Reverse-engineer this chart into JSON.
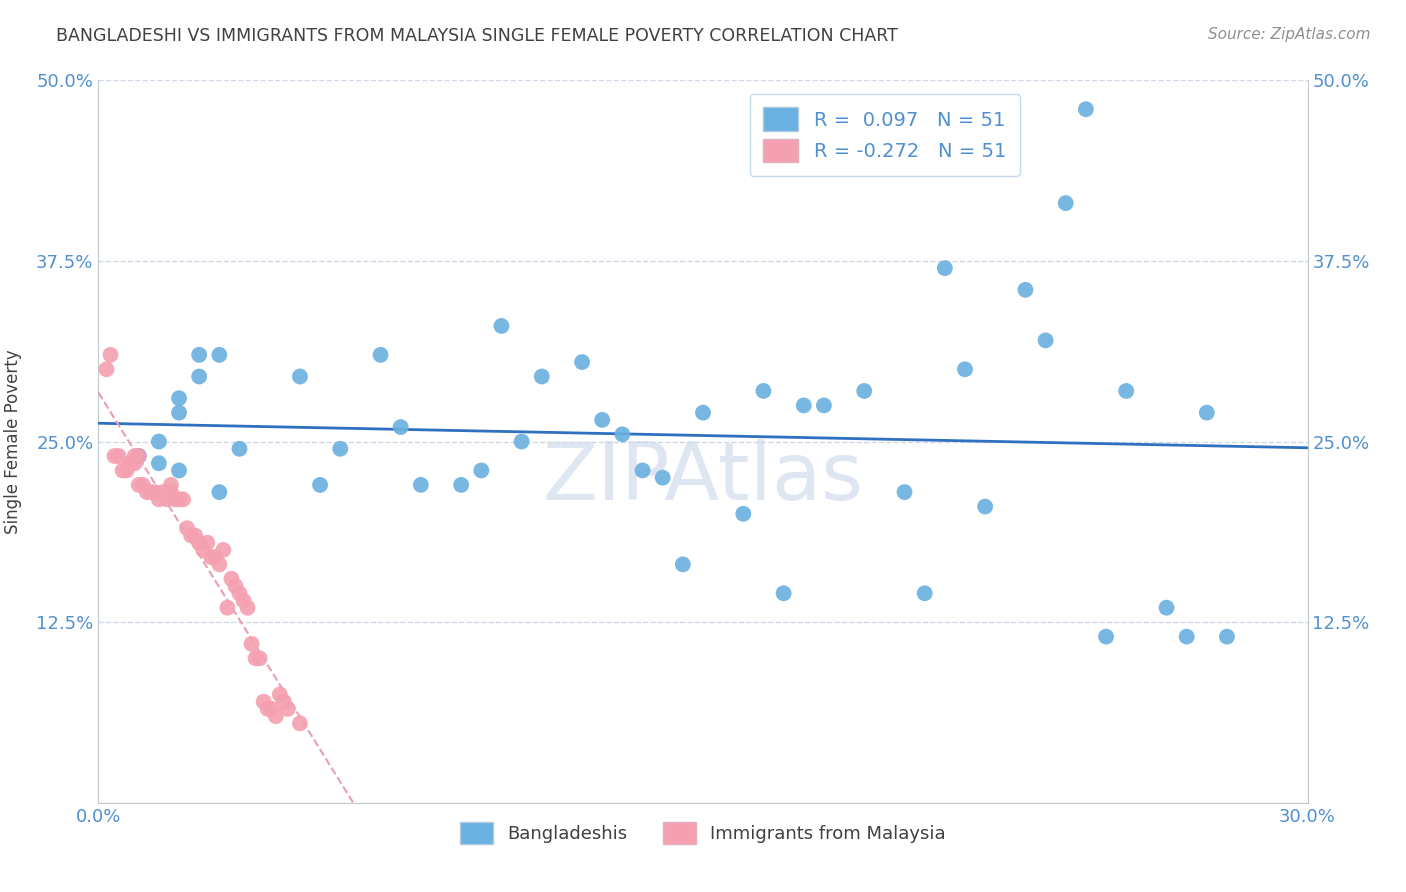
{
  "title": "BANGLADESHI VS IMMIGRANTS FROM MALAYSIA SINGLE FEMALE POVERTY CORRELATION CHART",
  "source": "Source: ZipAtlas.com",
  "ylabel": "Single Female Poverty",
  "xlim": [
    0.0,
    0.3
  ],
  "ylim": [
    0.0,
    0.5
  ],
  "xticks": [
    0.0,
    0.05,
    0.1,
    0.15,
    0.2,
    0.25,
    0.3
  ],
  "yticks": [
    0.0,
    0.125,
    0.25,
    0.375,
    0.5
  ],
  "ytick_labels": [
    "",
    "12.5%",
    "25.0%",
    "37.5%",
    "50.0%"
  ],
  "xtick_labels": [
    "0.0%",
    "",
    "",
    "",
    "",
    "",
    "30.0%"
  ],
  "legend1_label": "R =  0.097   N = 51",
  "legend2_label": "R = -0.272   N = 51",
  "legend_bottom1": "Bangladeshis",
  "legend_bottom2": "Immigrants from Malaysia",
  "blue_color": "#6ab0e0",
  "pink_color": "#f4a0b0",
  "trend_blue": "#3070c0",
  "trend_pink_dashed": "#e8a0b0",
  "axis_color": "#5090d0",
  "grid_color": "#d0d8e8",
  "title_color": "#404040",
  "source_color": "#909090",
  "watermark_color": "#c8d8e8",
  "bangladeshi_x": [
    0.02,
    0.02,
    0.025,
    0.03,
    0.01,
    0.01,
    0.015,
    0.015,
    0.02,
    0.025,
    0.03,
    0.035,
    0.05,
    0.055,
    0.06,
    0.07,
    0.075,
    0.08,
    0.09,
    0.095,
    0.1,
    0.105,
    0.11,
    0.12,
    0.125,
    0.13,
    0.135,
    0.14,
    0.145,
    0.15,
    0.16,
    0.165,
    0.17,
    0.175,
    0.18,
    0.19,
    0.2,
    0.205,
    0.21,
    0.215,
    0.22,
    0.23,
    0.235,
    0.24,
    0.245,
    0.25,
    0.255,
    0.265,
    0.27,
    0.275,
    0.28
  ],
  "bangladeshi_y": [
    0.27,
    0.23,
    0.31,
    0.31,
    0.24,
    0.24,
    0.25,
    0.235,
    0.28,
    0.295,
    0.215,
    0.245,
    0.295,
    0.22,
    0.245,
    0.31,
    0.26,
    0.22,
    0.22,
    0.23,
    0.33,
    0.25,
    0.295,
    0.305,
    0.265,
    0.255,
    0.23,
    0.225,
    0.165,
    0.27,
    0.2,
    0.285,
    0.145,
    0.275,
    0.275,
    0.285,
    0.215,
    0.145,
    0.37,
    0.3,
    0.205,
    0.355,
    0.32,
    0.415,
    0.48,
    0.115,
    0.285,
    0.135,
    0.115,
    0.27,
    0.115
  ],
  "malaysia_x": [
    0.002,
    0.003,
    0.004,
    0.005,
    0.006,
    0.007,
    0.008,
    0.008,
    0.009,
    0.009,
    0.01,
    0.01,
    0.011,
    0.012,
    0.013,
    0.014,
    0.015,
    0.016,
    0.017,
    0.018,
    0.018,
    0.019,
    0.02,
    0.021,
    0.022,
    0.023,
    0.024,
    0.025,
    0.026,
    0.027,
    0.028,
    0.029,
    0.03,
    0.031,
    0.032,
    0.033,
    0.034,
    0.035,
    0.036,
    0.037,
    0.038,
    0.039,
    0.04,
    0.041,
    0.042,
    0.043,
    0.044,
    0.045,
    0.046,
    0.047,
    0.05
  ],
  "malaysia_y": [
    0.3,
    0.31,
    0.24,
    0.24,
    0.23,
    0.23,
    0.235,
    0.235,
    0.235,
    0.24,
    0.24,
    0.22,
    0.22,
    0.215,
    0.215,
    0.215,
    0.21,
    0.215,
    0.21,
    0.215,
    0.22,
    0.21,
    0.21,
    0.21,
    0.19,
    0.185,
    0.185,
    0.18,
    0.175,
    0.18,
    0.17,
    0.17,
    0.165,
    0.175,
    0.135,
    0.155,
    0.15,
    0.145,
    0.14,
    0.135,
    0.11,
    0.1,
    0.1,
    0.07,
    0.065,
    0.065,
    0.06,
    0.075,
    0.07,
    0.065,
    0.055
  ]
}
